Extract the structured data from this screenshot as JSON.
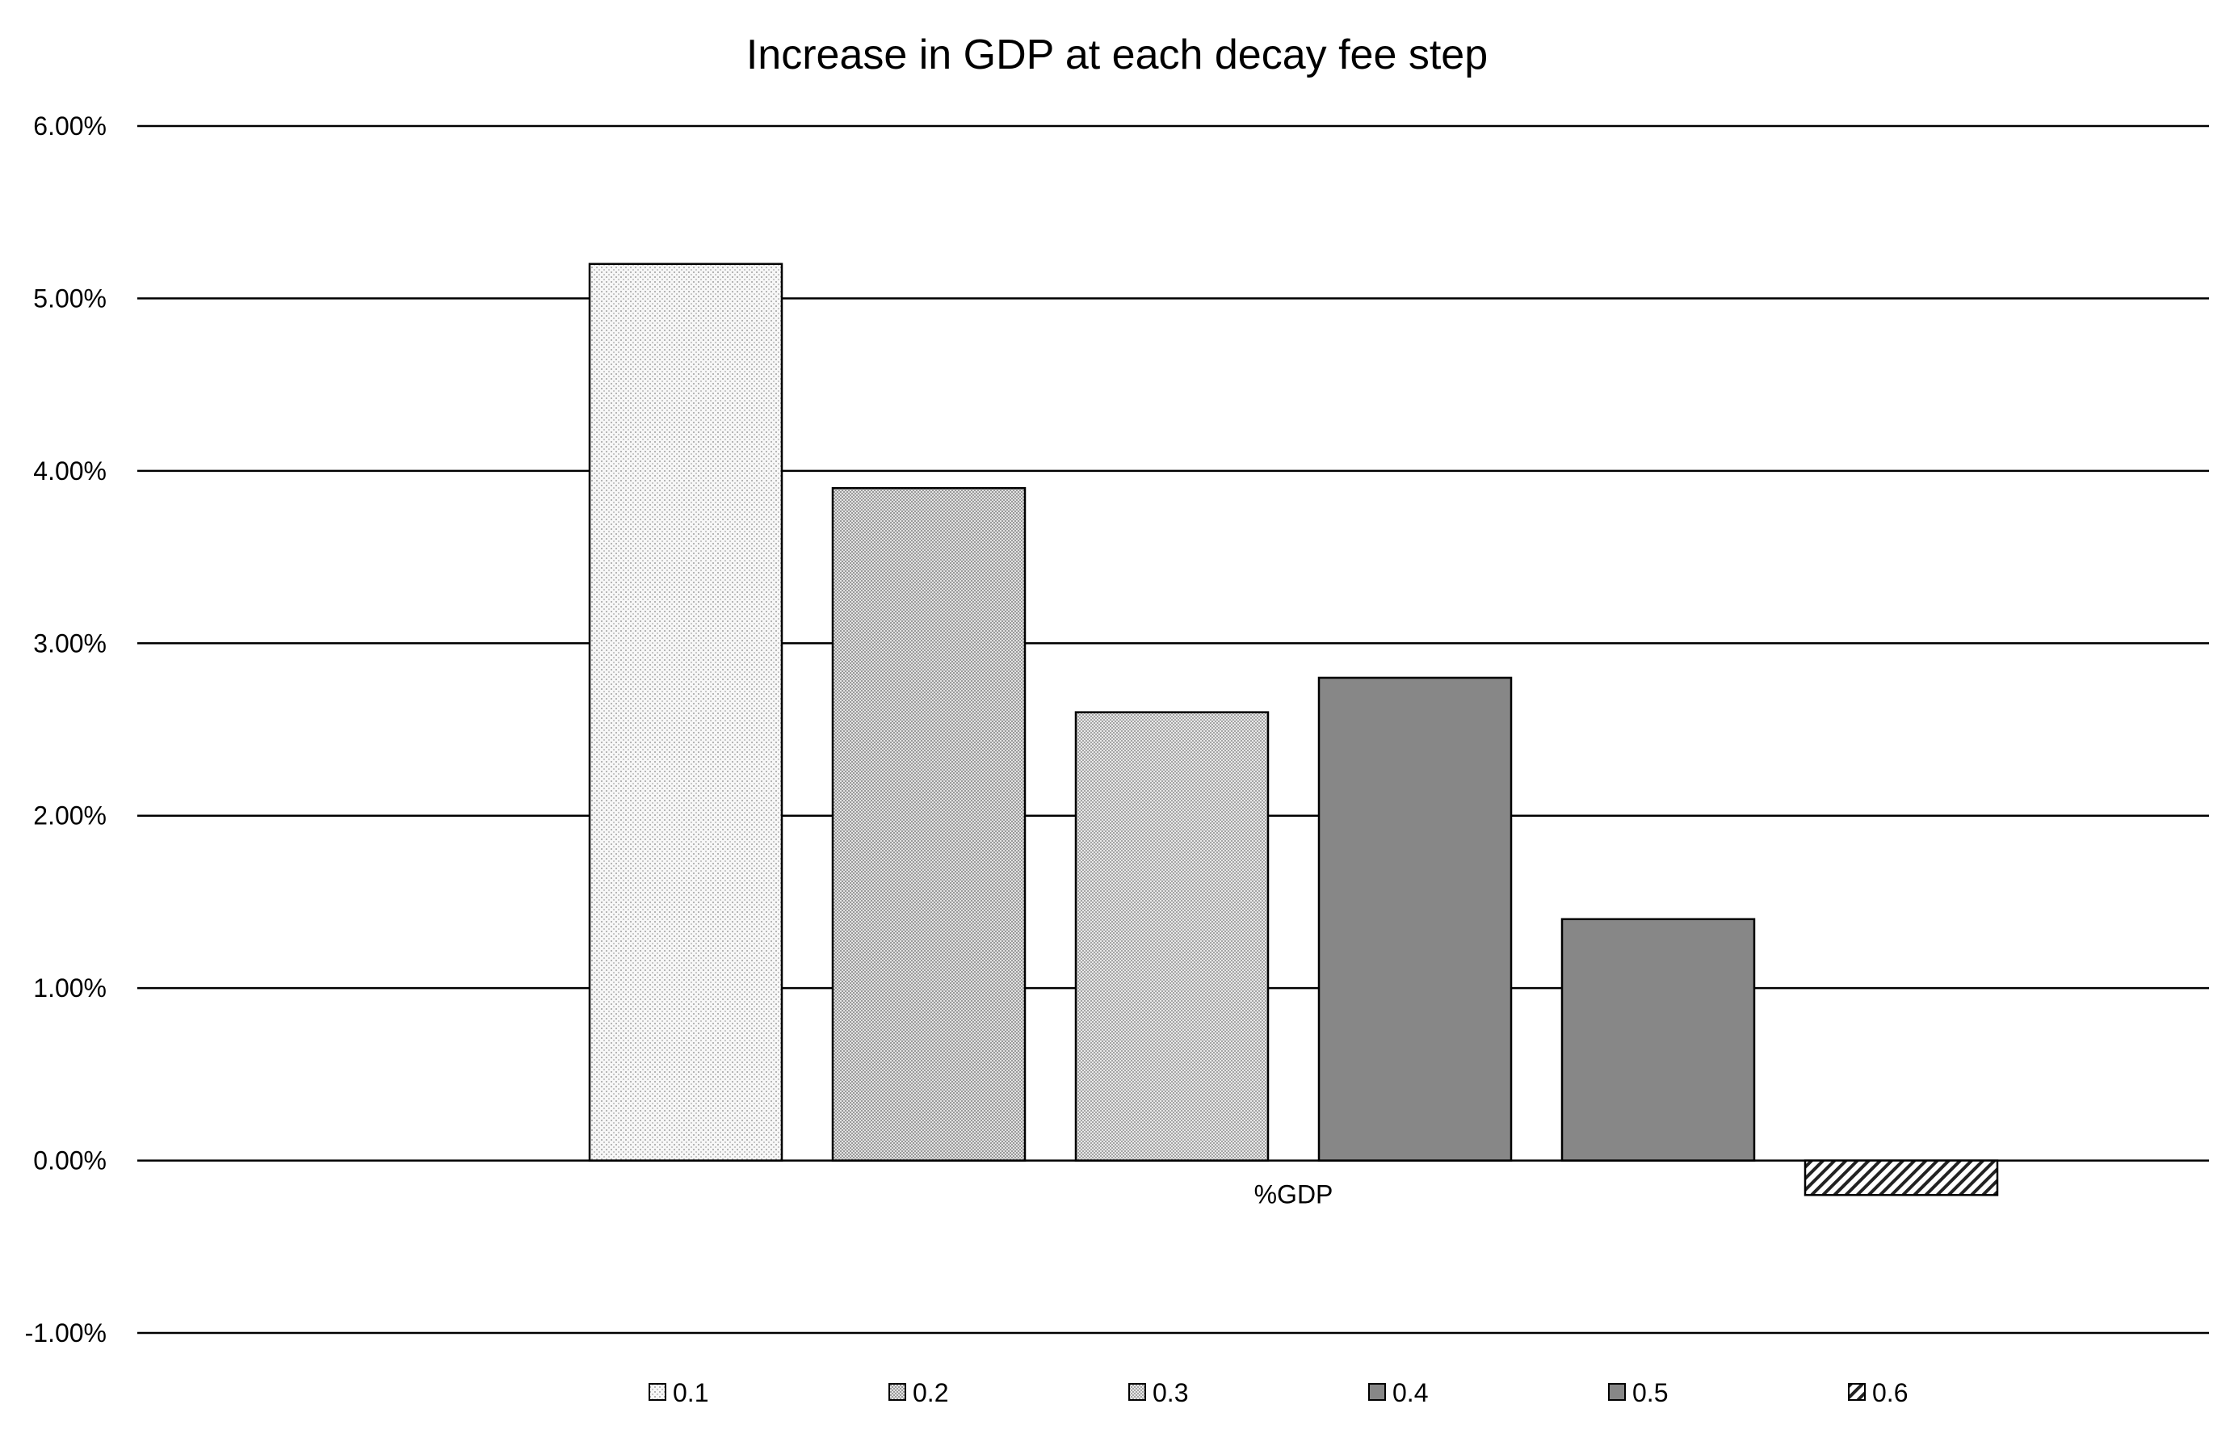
{
  "chart_data": {
    "type": "bar",
    "title": "Increase in GDP at each decay fee step",
    "xlabel": "",
    "ylabel": "",
    "categories": [
      "%GDP"
    ],
    "series": [
      {
        "name": "0.1",
        "values": [
          5.2
        ],
        "fill": "pattern-dots-light",
        "color": "#f2f2f2"
      },
      {
        "name": "0.2",
        "values": [
          3.9
        ],
        "fill": "pattern-dense-grey",
        "color": "#cfcfcf"
      },
      {
        "name": "0.3",
        "values": [
          2.6
        ],
        "fill": "pattern-dense-grey",
        "color": "#d6d6d6"
      },
      {
        "name": "0.4",
        "values": [
          2.8
        ],
        "fill": "solid",
        "color": "#878787"
      },
      {
        "name": "0.5",
        "values": [
          1.4
        ],
        "fill": "solid",
        "color": "#878787"
      },
      {
        "name": "0.6",
        "values": [
          -0.2
        ],
        "fill": "pattern-diagonal",
        "color": "#333333"
      }
    ],
    "ylim": [
      -1.0,
      6.0
    ],
    "yticks": [
      6.0,
      5.0,
      4.0,
      3.0,
      2.0,
      1.0,
      0.0,
      -1.0
    ],
    "ytick_labels": [
      "6.00%",
      "5.00%",
      "4.00%",
      "3.00%",
      "2.00%",
      "1.00%",
      "0.00%",
      "-1.00%"
    ],
    "grid": true,
    "legend_position": "bottom"
  }
}
